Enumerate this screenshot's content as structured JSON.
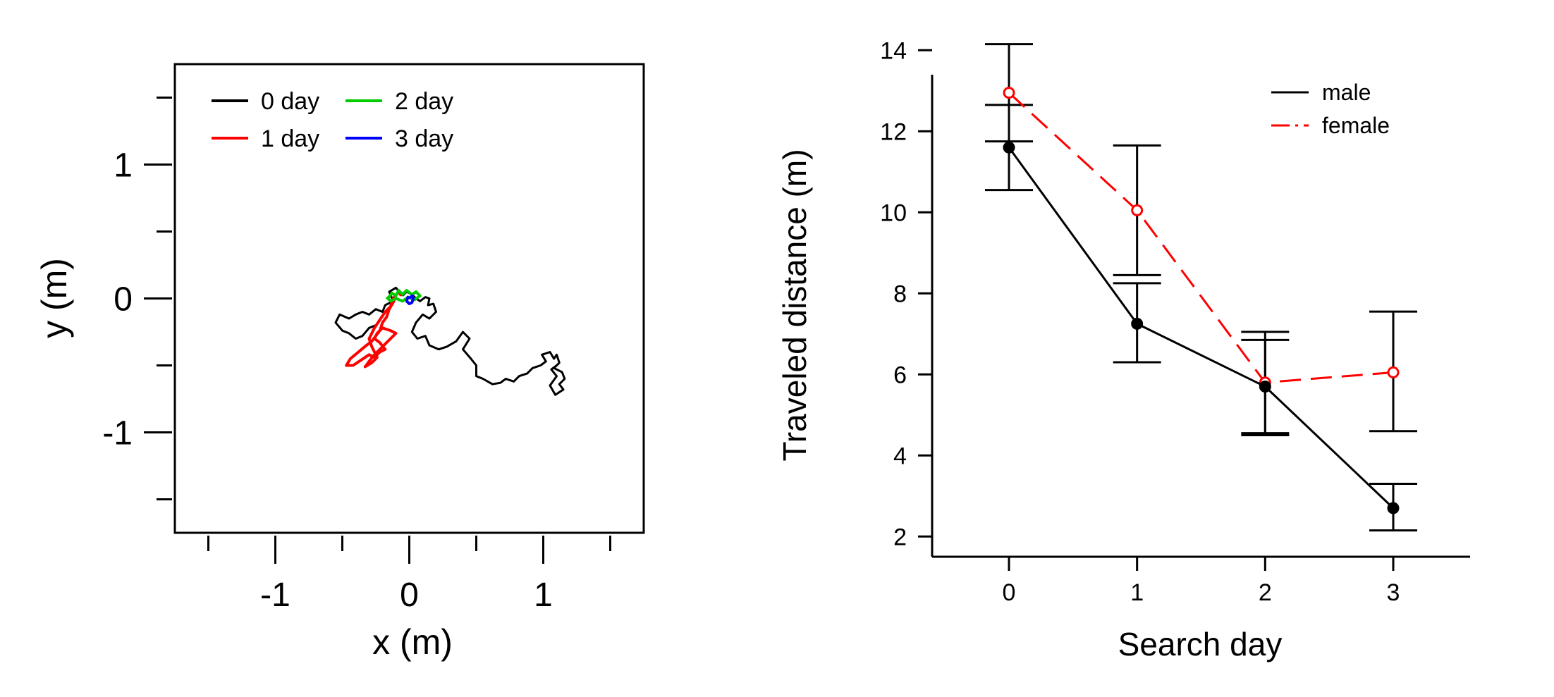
{
  "chart_data": [
    {
      "type": "line",
      "subtype": "trajectory",
      "xlabel": "x (m)",
      "ylabel": "y (m)",
      "xlim": [
        -1.75,
        1.75
      ],
      "ylim": [
        -1.75,
        1.75
      ],
      "xticks_labeled": [
        -1,
        0,
        1
      ],
      "xticks_minor": [
        -1.5,
        -0.5,
        0.5,
        1.5
      ],
      "yticks_labeled": [
        -1,
        0,
        1
      ],
      "yticks_minor": [
        -1.5,
        -0.5,
        0.5,
        1.5
      ],
      "grid": false,
      "legend": {
        "placement": "top-left",
        "columns": 2
      },
      "series": [
        {
          "name": "0 day",
          "color": "#000000",
          "points": [
            [
              -0.05,
              0.02
            ],
            [
              -0.02,
              0.05
            ],
            [
              0.02,
              0.03
            ],
            [
              0.05,
              0.0
            ],
            [
              0.08,
              -0.02
            ],
            [
              0.12,
              0.01
            ],
            [
              0.15,
              0.0
            ],
            [
              0.14,
              -0.05
            ],
            [
              0.18,
              -0.04
            ],
            [
              0.2,
              -0.1
            ],
            [
              0.15,
              -0.15
            ],
            [
              0.1,
              -0.12
            ],
            [
              0.05,
              -0.18
            ],
            [
              0.02,
              -0.25
            ],
            [
              0.06,
              -0.3
            ],
            [
              0.12,
              -0.28
            ],
            [
              0.15,
              -0.35
            ],
            [
              0.22,
              -0.38
            ],
            [
              0.28,
              -0.36
            ],
            [
              0.35,
              -0.32
            ],
            [
              0.4,
              -0.25
            ],
            [
              0.45,
              -0.3
            ],
            [
              0.4,
              -0.38
            ],
            [
              0.46,
              -0.45
            ],
            [
              0.5,
              -0.5
            ],
            [
              0.5,
              -0.58
            ],
            [
              0.55,
              -0.6
            ],
            [
              0.62,
              -0.64
            ],
            [
              0.68,
              -0.63
            ],
            [
              0.72,
              -0.6
            ],
            [
              0.78,
              -0.62
            ],
            [
              0.82,
              -0.58
            ],
            [
              0.88,
              -0.56
            ],
            [
              0.92,
              -0.52
            ],
            [
              0.98,
              -0.5
            ],
            [
              1.02,
              -0.47
            ],
            [
              0.99,
              -0.42
            ],
            [
              1.05,
              -0.4
            ],
            [
              1.08,
              -0.45
            ],
            [
              1.1,
              -0.42
            ],
            [
              1.12,
              -0.48
            ],
            [
              1.08,
              -0.52
            ],
            [
              1.14,
              -0.55
            ],
            [
              1.16,
              -0.6
            ],
            [
              1.12,
              -0.64
            ],
            [
              1.15,
              -0.68
            ],
            [
              1.09,
              -0.72
            ],
            [
              1.05,
              -0.65
            ],
            [
              1.1,
              -0.58
            ],
            [
              1.06,
              -0.53
            ],
            [
              1.1,
              -0.5
            ]
          ]
        },
        {
          "name": "0 day",
          "color": "#000000",
          "points": [
            [
              -0.05,
              0.02
            ],
            [
              -0.1,
              0.08
            ],
            [
              -0.15,
              0.05
            ],
            [
              -0.12,
              -0.02
            ],
            [
              -0.18,
              -0.05
            ],
            [
              -0.2,
              -0.1
            ],
            [
              -0.25,
              -0.08
            ],
            [
              -0.3,
              -0.12
            ],
            [
              -0.35,
              -0.1
            ],
            [
              -0.4,
              -0.12
            ],
            [
              -0.45,
              -0.15
            ],
            [
              -0.52,
              -0.12
            ],
            [
              -0.55,
              -0.18
            ],
            [
              -0.5,
              -0.24
            ],
            [
              -0.45,
              -0.26
            ],
            [
              -0.4,
              -0.3
            ],
            [
              -0.35,
              -0.28
            ],
            [
              -0.3,
              -0.22
            ],
            [
              -0.25,
              -0.2
            ]
          ]
        },
        {
          "name": "1 day",
          "color": "#ff0000",
          "points": [
            [
              -0.1,
              0.02
            ],
            [
              -0.12,
              -0.03
            ],
            [
              -0.15,
              -0.08
            ],
            [
              -0.17,
              -0.14
            ],
            [
              -0.2,
              -0.18
            ],
            [
              -0.22,
              -0.24
            ],
            [
              -0.25,
              -0.28
            ],
            [
              -0.28,
              -0.32
            ],
            [
              -0.32,
              -0.35
            ],
            [
              -0.38,
              -0.4
            ],
            [
              -0.44,
              -0.45
            ],
            [
              -0.47,
              -0.5
            ],
            [
              -0.42,
              -0.5
            ],
            [
              -0.36,
              -0.46
            ],
            [
              -0.3,
              -0.42
            ],
            [
              -0.26,
              -0.44
            ],
            [
              -0.22,
              -0.4
            ],
            [
              -0.18,
              -0.38
            ],
            [
              -0.22,
              -0.33
            ],
            [
              -0.26,
              -0.3
            ],
            [
              -0.24,
              -0.26
            ],
            [
              -0.2,
              -0.22
            ],
            [
              -0.14,
              -0.24
            ],
            [
              -0.1,
              -0.26
            ],
            [
              -0.14,
              -0.3
            ],
            [
              -0.2,
              -0.36
            ],
            [
              -0.26,
              -0.42
            ],
            [
              -0.3,
              -0.47
            ],
            [
              -0.33,
              -0.51
            ],
            [
              -0.28,
              -0.48
            ],
            [
              -0.24,
              -0.44
            ],
            [
              -0.28,
              -0.36
            ],
            [
              -0.3,
              -0.3
            ],
            [
              -0.26,
              -0.22
            ],
            [
              -0.22,
              -0.16
            ],
            [
              -0.18,
              -0.1
            ],
            [
              -0.14,
              -0.06
            ],
            [
              -0.12,
              0.0
            ],
            [
              -0.08,
              0.05
            ],
            [
              -0.06,
              0.02
            ]
          ]
        },
        {
          "name": "2 day",
          "color": "#00cc00",
          "points": [
            [
              -0.16,
              0.0
            ],
            [
              -0.13,
              0.04
            ],
            [
              -0.1,
              0.02
            ],
            [
              -0.08,
              0.06
            ],
            [
              -0.05,
              0.03
            ],
            [
              -0.02,
              0.06
            ],
            [
              0.02,
              0.03
            ],
            [
              0.05,
              0.05
            ],
            [
              0.08,
              0.02
            ],
            [
              0.04,
              -0.01
            ],
            [
              -0.01,
              0.01
            ],
            [
              -0.05,
              -0.02
            ],
            [
              -0.1,
              0.0
            ],
            [
              -0.14,
              -0.02
            ],
            [
              -0.17,
              0.01
            ]
          ]
        },
        {
          "name": "3 day",
          "color": "#0000ff",
          "points": [
            [
              0.0,
              0.0
            ],
            [
              0.02,
              0.02
            ],
            [
              0.03,
              0.0
            ],
            [
              0.02,
              -0.03
            ],
            [
              0.0,
              -0.04
            ],
            [
              -0.02,
              -0.02
            ],
            [
              -0.01,
              0.01
            ],
            [
              0.0,
              0.0
            ]
          ]
        }
      ]
    },
    {
      "type": "line",
      "xlabel": "Search day",
      "ylabel": "Traveled distance (m)",
      "xlim": [
        -0.6,
        3.6
      ],
      "ylim": [
        1.5,
        14.3
      ],
      "xticks": [
        0,
        1,
        2,
        3
      ],
      "yticks": [
        2,
        4,
        6,
        8,
        10,
        12,
        14
      ],
      "grid": false,
      "legend": {
        "placement": "top-right"
      },
      "series": [
        {
          "name": "male",
          "color": "#000000",
          "line_style": "solid",
          "marker": "filled-circle",
          "x": [
            0,
            1,
            2,
            3
          ],
          "values": [
            11.6,
            7.25,
            5.7,
            2.7
          ],
          "error_low": [
            10.55,
            6.3,
            4.55,
            2.15
          ],
          "error_high": [
            12.65,
            8.25,
            6.85,
            3.3
          ]
        },
        {
          "name": "female",
          "color": "#ff0000",
          "line_style": "dashed",
          "marker": "open-circle",
          "x": [
            0,
            1,
            2,
            3
          ],
          "values": [
            12.95,
            10.05,
            5.8,
            6.05
          ],
          "error_low": [
            11.75,
            8.45,
            4.5,
            4.6
          ],
          "error_high": [
            14.15,
            11.65,
            7.05,
            7.55
          ]
        }
      ]
    }
  ]
}
